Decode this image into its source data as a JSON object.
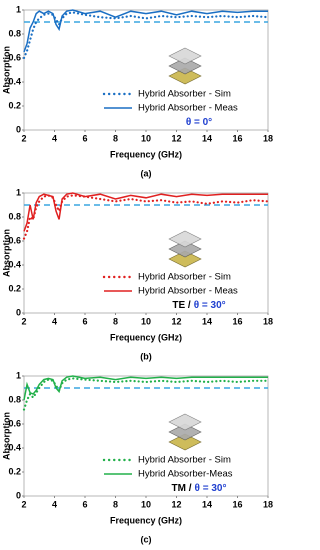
{
  "chart_data": [
    {
      "type": "line",
      "caption": "(a)",
      "xlabel": "Frequency (GHz)",
      "ylabel": "Absorption",
      "annotation": [
        "θ = 0°"
      ],
      "annotation_colors": [
        "#1f3fcf"
      ],
      "xlim": [
        2,
        18
      ],
      "xticks": [
        2,
        4,
        6,
        8,
        10,
        12,
        14,
        16,
        18
      ],
      "ylim": [
        0,
        1
      ],
      "yticks": [
        0,
        0.2,
        0.4,
        0.6,
        0.8,
        1
      ],
      "hline": 0.9,
      "hline_color": "#3aa6e0",
      "x": [
        2,
        2.2,
        2.4,
        2.6,
        2.8,
        3,
        3.3,
        3.6,
        3.9,
        4.1,
        4.3,
        4.5,
        4.8,
        5.2,
        6,
        7,
        8,
        9,
        10,
        11,
        12,
        13,
        14,
        15,
        16,
        17,
        18
      ],
      "series": [
        {
          "name": "Hybrid Absorber - Sim",
          "color": "#1a6fc4",
          "dash": "dot",
          "values": [
            0.6,
            0.66,
            0.75,
            0.84,
            0.9,
            0.93,
            0.96,
            0.97,
            0.96,
            0.92,
            0.88,
            0.93,
            0.97,
            0.98,
            0.96,
            0.94,
            0.93,
            0.95,
            0.93,
            0.95,
            0.94,
            0.95,
            0.94,
            0.95,
            0.94,
            0.95,
            0.94
          ]
        },
        {
          "name": "Hybrid Absorber - Meas",
          "color": "#1a6fc4",
          "dash": "solid",
          "values": [
            0.65,
            0.72,
            0.85,
            0.9,
            0.97,
            0.99,
            0.97,
            0.99,
            0.97,
            0.88,
            0.84,
            0.95,
            0.99,
            1,
            0.97,
            0.99,
            0.94,
            0.99,
            0.97,
            0.99,
            0.96,
            0.99,
            0.97,
            0.99,
            0.98,
            0.99,
            0.99
          ]
        }
      ]
    },
    {
      "type": "line",
      "caption": "(b)",
      "xlabel": "Frequency (GHz)",
      "ylabel": "Absorption",
      "annotation": [
        "TE /",
        "θ = 30°"
      ],
      "annotation_colors": [
        "#000000",
        "#1f3fcf"
      ],
      "xlim": [
        2,
        18
      ],
      "xticks": [
        2,
        4,
        6,
        8,
        10,
        12,
        14,
        16,
        18
      ],
      "ylim": [
        0,
        1
      ],
      "yticks": [
        0,
        0.2,
        0.4,
        0.6,
        0.8,
        1
      ],
      "hline": 0.9,
      "hline_color": "#3aa6e0",
      "x": [
        2,
        2.2,
        2.4,
        2.6,
        2.8,
        3,
        3.3,
        3.6,
        3.9,
        4.1,
        4.3,
        4.5,
        4.8,
        5.2,
        6,
        7,
        8,
        9,
        10,
        11,
        12,
        13,
        14,
        15,
        16,
        17,
        18
      ],
      "series": [
        {
          "name": "Hybrid Absorber - Sim",
          "color": "#e02020",
          "dash": "dot",
          "values": [
            0.62,
            0.68,
            0.8,
            0.78,
            0.88,
            0.93,
            0.97,
            0.98,
            0.96,
            0.9,
            0.85,
            0.93,
            0.97,
            0.98,
            0.97,
            0.95,
            0.93,
            0.95,
            0.93,
            0.94,
            0.92,
            0.93,
            0.91,
            0.93,
            0.92,
            0.94,
            0.93
          ]
        },
        {
          "name": "Hybrid Absorber - Meas",
          "color": "#e02020",
          "dash": "solid",
          "values": [
            0.68,
            0.75,
            0.9,
            0.78,
            0.92,
            0.97,
            0.99,
            0.98,
            0.97,
            0.85,
            0.78,
            0.95,
            0.99,
            1,
            0.97,
            0.99,
            0.95,
            0.98,
            0.96,
            0.99,
            0.97,
            0.99,
            0.98,
            0.99,
            0.99,
            0.99,
            0.99
          ]
        }
      ]
    },
    {
      "type": "line",
      "caption": "(c)",
      "xlabel": "Frequency (GHz)",
      "ylabel": "Absorption",
      "annotation": [
        "TM /",
        "θ = 30°"
      ],
      "annotation_colors": [
        "#000000",
        "#1f3fcf"
      ],
      "xlim": [
        2,
        18
      ],
      "xticks": [
        2,
        4,
        6,
        8,
        10,
        12,
        14,
        16,
        18
      ],
      "ylim": [
        0,
        1
      ],
      "yticks": [
        0,
        0.2,
        0.4,
        0.6,
        0.8,
        1
      ],
      "hline": 0.9,
      "hline_color": "#3aa6e0",
      "x": [
        2,
        2.2,
        2.4,
        2.6,
        2.8,
        3,
        3.3,
        3.6,
        3.9,
        4.1,
        4.3,
        4.5,
        4.8,
        5.2,
        6,
        7,
        8,
        9,
        10,
        11,
        12,
        13,
        14,
        15,
        16,
        17,
        18
      ],
      "series": [
        {
          "name": "Hybrid Absorber - Sim",
          "color": "#22b04a",
          "dash": "dot",
          "values": [
            0.72,
            0.8,
            0.85,
            0.82,
            0.86,
            0.9,
            0.95,
            0.97,
            0.96,
            0.92,
            0.88,
            0.94,
            0.97,
            0.98,
            0.97,
            0.96,
            0.95,
            0.96,
            0.95,
            0.96,
            0.95,
            0.96,
            0.95,
            0.96,
            0.95,
            0.96,
            0.96
          ]
        },
        {
          "name": "Hybrid Absorber-Meas",
          "color": "#22b04a",
          "dash": "solid",
          "values": [
            0.8,
            0.93,
            0.86,
            0.85,
            0.88,
            0.93,
            0.97,
            0.98,
            0.97,
            0.9,
            0.87,
            0.96,
            0.99,
            1,
            0.98,
            0.99,
            0.97,
            0.99,
            0.98,
            0.99,
            0.98,
            0.99,
            0.99,
            0.99,
            0.99,
            0.99,
            0.99
          ]
        }
      ]
    }
  ]
}
